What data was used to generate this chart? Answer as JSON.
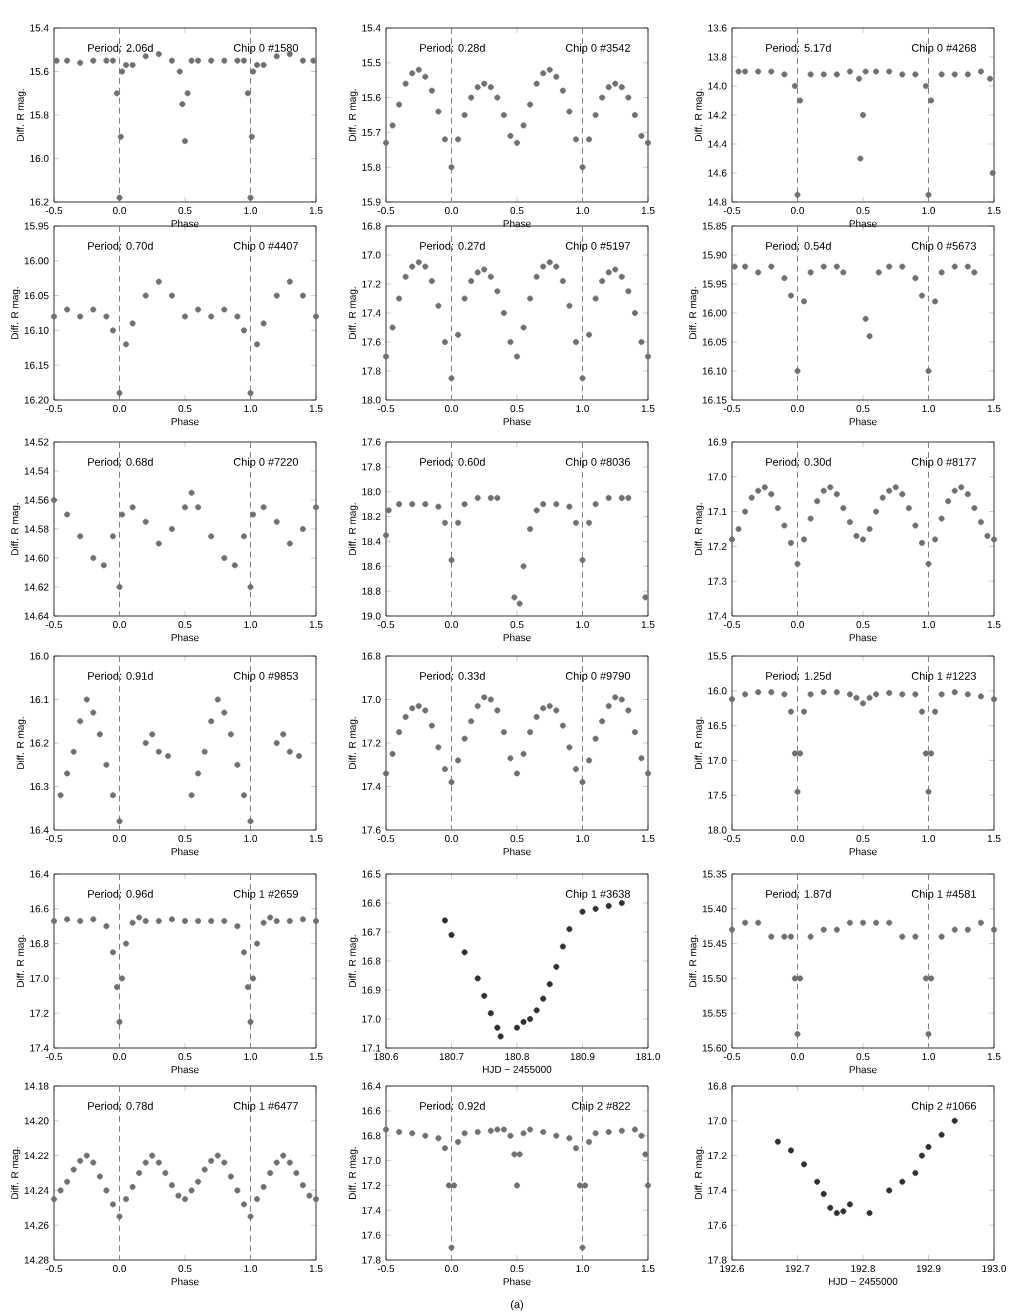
{
  "chart_data": [
    {
      "type": "scatter",
      "color": "#707070",
      "xlabel": "Phase",
      "ylabel": "Diff. R mag.",
      "annotations": [
        "Period: 2.06d",
        "Chip 0 #1580"
      ],
      "xlim": [
        -0.5,
        1.5
      ],
      "xticks": [
        -0.5,
        {
          "value": 0,
          "label": "0.0"
        },
        0.5,
        {
          "value": 1,
          "label": "1.0"
        },
        1.5
      ],
      "ylim": [
        16.2,
        15.4
      ],
      "yticks": [
        15.4,
        15.6,
        15.8,
        {
          "value": 16,
          "label": "16.0"
        },
        16.2
      ],
      "ref_lines": [
        {
          "axis": "x",
          "value": 0,
          "color": "#808080",
          "line_style": "dashed"
        },
        {
          "axis": "x",
          "value": 1,
          "color": "#808080",
          "line_style": "dashed"
        }
      ],
      "x": [
        -0.48,
        -0.4,
        -0.3,
        -0.2,
        -0.1,
        -0.05,
        -0.02,
        0,
        0.01,
        0.02,
        0.05,
        0.1,
        0.2,
        0.3,
        0.4,
        0.46,
        0.48,
        0.5,
        0.52,
        0.55,
        0.6,
        0.7,
        0.8,
        0.9,
        0.95,
        0.98,
        1,
        1.01,
        1.02,
        1.05,
        1.1,
        1.2,
        1.3,
        1.4,
        1.48
      ],
      "values": [
        15.55,
        15.55,
        15.56,
        15.55,
        15.55,
        15.55,
        15.7,
        16.18,
        15.9,
        15.6,
        15.57,
        15.57,
        15.53,
        15.52,
        15.55,
        15.6,
        15.75,
        15.92,
        15.7,
        15.55,
        15.55,
        15.55,
        15.55,
        15.55,
        15.55,
        15.7,
        16.18,
        15.9,
        15.6,
        15.57,
        15.57,
        15.53,
        15.52,
        15.55,
        15.55
      ]
    },
    {
      "type": "scatter",
      "color": "#707070",
      "xlabel": "Phase",
      "ylabel": "Diff. R mag.",
      "annotations": [
        "Period: 0.28d",
        "Chip 0 #3542"
      ],
      "xlim": [
        -0.5,
        1.5
      ],
      "xticks": [
        -0.5,
        {
          "value": 0,
          "label": "0.0"
        },
        0.5,
        {
          "value": 1,
          "label": "1.0"
        },
        1.5
      ],
      "ylim": [
        15.9,
        15.4
      ],
      "yticks": [
        15.4,
        15.5,
        15.6,
        15.7,
        15.8,
        15.9
      ],
      "ref_lines": [
        {
          "axis": "x",
          "value": 0,
          "color": "#808080",
          "line_style": "dashed"
        },
        {
          "axis": "x",
          "value": 1,
          "color": "#808080",
          "line_style": "dashed"
        }
      ],
      "x": [
        -0.5,
        -0.45,
        -0.4,
        -0.35,
        -0.3,
        -0.25,
        -0.2,
        -0.15,
        -0.1,
        -0.05,
        0,
        0.05,
        0.1,
        0.15,
        0.2,
        0.25,
        0.3,
        0.35,
        0.4,
        0.45,
        0.5,
        0.55,
        0.6,
        0.65,
        0.7,
        0.75,
        0.8,
        0.85,
        0.9,
        0.95,
        1,
        1.05,
        1.1,
        1.15,
        1.2,
        1.25,
        1.3,
        1.35,
        1.4,
        1.45,
        1.5
      ],
      "values": [
        15.73,
        15.68,
        15.62,
        15.56,
        15.53,
        15.52,
        15.54,
        15.58,
        15.64,
        15.72,
        15.8,
        15.72,
        15.65,
        15.6,
        15.57,
        15.56,
        15.57,
        15.6,
        15.65,
        15.71,
        15.73,
        15.68,
        15.62,
        15.56,
        15.53,
        15.52,
        15.54,
        15.58,
        15.64,
        15.72,
        15.8,
        15.72,
        15.65,
        15.6,
        15.57,
        15.56,
        15.57,
        15.6,
        15.65,
        15.71,
        15.73
      ]
    },
    {
      "type": "scatter",
      "color": "#707070",
      "xlabel": "Phase",
      "ylabel": "Diff. R mag.",
      "annotations": [
        "Period: 5.17d",
        "Chip 0 #4268"
      ],
      "xlim": [
        -0.5,
        1.5
      ],
      "xticks": [
        -0.5,
        {
          "value": 0,
          "label": "0.0"
        },
        0.5,
        {
          "value": 1,
          "label": "1.0"
        },
        1.5
      ],
      "ylim": [
        14.8,
        13.6
      ],
      "yticks": [
        13.6,
        13.8,
        {
          "value": 14,
          "label": "14.0"
        },
        14.2,
        14.4,
        14.6,
        14.8
      ],
      "ref_lines": [
        {
          "axis": "x",
          "value": 0,
          "color": "#808080",
          "line_style": "dashed"
        },
        {
          "axis": "x",
          "value": 1,
          "color": "#808080",
          "line_style": "dashed"
        }
      ],
      "x": [
        -0.45,
        -0.4,
        -0.3,
        -0.2,
        -0.1,
        -0.02,
        0,
        0.02,
        0.1,
        0.2,
        0.3,
        0.4,
        0.47,
        0.48,
        0.5,
        0.52,
        0.6,
        0.7,
        0.8,
        0.9,
        0.98,
        1,
        1.02,
        1.1,
        1.2,
        1.3,
        1.4,
        1.47,
        1.49
      ],
      "values": [
        13.9,
        13.9,
        13.9,
        13.9,
        13.92,
        14.0,
        14.75,
        14.1,
        13.92,
        13.92,
        13.92,
        13.9,
        13.95,
        14.5,
        14.2,
        13.9,
        13.9,
        13.9,
        13.92,
        13.92,
        14.0,
        14.75,
        14.1,
        13.92,
        13.92,
        13.92,
        13.9,
        13.95,
        14.6
      ]
    },
    {
      "type": "scatter",
      "color": "#707070",
      "xlabel": "Phase",
      "ylabel": "Diff. R mag.",
      "annotations": [
        "Period: 0.70d",
        "Chip 0 #4407"
      ],
      "xlim": [
        -0.5,
        1.5
      ],
      "xticks": [
        -0.5,
        {
          "value": 0,
          "label": "0.0"
        },
        0.5,
        {
          "value": 1,
          "label": "1.0"
        },
        1.5
      ],
      "ylim": [
        16.2,
        15.95
      ],
      "yticks": [
        15.95,
        {
          "value": 16,
          "label": "16.00"
        },
        16.05,
        {
          "value": 16.1,
          "label": "16.10"
        },
        16.15,
        {
          "value": 16.2,
          "label": "16.20"
        }
      ],
      "ref_lines": [
        {
          "axis": "x",
          "value": 0,
          "color": "#808080",
          "line_style": "dashed"
        },
        {
          "axis": "x",
          "value": 1,
          "color": "#808080",
          "line_style": "dashed"
        }
      ],
      "x": [
        -0.5,
        -0.4,
        -0.3,
        -0.2,
        -0.1,
        -0.05,
        0,
        0.05,
        0.1,
        0.2,
        0.3,
        0.4,
        0.5,
        0.6,
        0.7,
        0.8,
        0.9,
        0.95,
        1,
        1.05,
        1.1,
        1.2,
        1.3,
        1.4,
        1.5
      ],
      "values": [
        16.08,
        16.07,
        16.08,
        16.07,
        16.08,
        16.1,
        16.19,
        16.12,
        16.09,
        16.05,
        16.03,
        16.05,
        16.08,
        16.07,
        16.08,
        16.07,
        16.08,
        16.1,
        16.19,
        16.12,
        16.09,
        16.05,
        16.03,
        16.05,
        16.08
      ]
    },
    {
      "type": "scatter",
      "color": "#707070",
      "xlabel": "Phase",
      "ylabel": "Diff. R mag.",
      "annotations": [
        "Period: 0.27d",
        "Chip 0 #5197"
      ],
      "xlim": [
        -0.5,
        1.5
      ],
      "xticks": [
        -0.5,
        {
          "value": 0,
          "label": "0.0"
        },
        0.5,
        {
          "value": 1,
          "label": "1.0"
        },
        1.5
      ],
      "ylim": [
        18.0,
        16.8
      ],
      "yticks": [
        16.8,
        {
          "value": 17,
          "label": "17.0"
        },
        17.2,
        17.4,
        17.6,
        17.8,
        {
          "value": 18,
          "label": "18.0"
        }
      ],
      "ref_lines": [
        {
          "axis": "x",
          "value": 0,
          "color": "#808080",
          "line_style": "dashed"
        },
        {
          "axis": "x",
          "value": 1,
          "color": "#808080",
          "line_style": "dashed"
        }
      ],
      "x": [
        -0.5,
        -0.45,
        -0.4,
        -0.35,
        -0.3,
        -0.25,
        -0.2,
        -0.15,
        -0.1,
        -0.05,
        0,
        0.05,
        0.1,
        0.15,
        0.2,
        0.25,
        0.3,
        0.35,
        0.4,
        0.45,
        0.5,
        0.55,
        0.6,
        0.65,
        0.7,
        0.75,
        0.8,
        0.85,
        0.9,
        0.95,
        1,
        1.05,
        1.1,
        1.15,
        1.2,
        1.25,
        1.3,
        1.35,
        1.4,
        1.45,
        1.5
      ],
      "values": [
        17.7,
        17.5,
        17.3,
        17.15,
        17.08,
        17.05,
        17.08,
        17.18,
        17.35,
        17.6,
        17.85,
        17.55,
        17.3,
        17.18,
        17.12,
        17.1,
        17.15,
        17.25,
        17.4,
        17.6,
        17.7,
        17.5,
        17.3,
        17.15,
        17.08,
        17.05,
        17.08,
        17.18,
        17.35,
        17.6,
        17.85,
        17.55,
        17.3,
        17.18,
        17.12,
        17.1,
        17.15,
        17.25,
        17.4,
        17.6,
        17.7
      ]
    },
    {
      "type": "scatter",
      "color": "#707070",
      "xlabel": "Phase",
      "ylabel": "Diff. R mag.",
      "annotations": [
        "Period: 0.54d",
        "Chip 0 #5673"
      ],
      "xlim": [
        -0.5,
        1.5
      ],
      "xticks": [
        -0.5,
        {
          "value": 0,
          "label": "0.0"
        },
        0.5,
        {
          "value": 1,
          "label": "1.0"
        },
        1.5
      ],
      "ylim": [
        16.15,
        15.85
      ],
      "yticks": [
        15.85,
        {
          "value": 15.9,
          "label": "15.90"
        },
        15.95,
        {
          "value": 16,
          "label": "16.00"
        },
        16.05,
        {
          "value": 16.1,
          "label": "16.10"
        },
        16.15
      ],
      "ref_lines": [
        {
          "axis": "x",
          "value": 0,
          "color": "#808080",
          "line_style": "dashed"
        },
        {
          "axis": "x",
          "value": 1,
          "color": "#808080",
          "line_style": "dashed"
        }
      ],
      "x": [
        -0.48,
        -0.4,
        -0.3,
        -0.2,
        -0.1,
        -0.05,
        0,
        0.05,
        0.1,
        0.2,
        0.3,
        0.35,
        0.52,
        0.55,
        0.62,
        0.7,
        0.8,
        0.9,
        0.95,
        1,
        1.05,
        1.1,
        1.2,
        1.3,
        1.35
      ],
      "values": [
        15.92,
        15.92,
        15.93,
        15.92,
        15.94,
        15.97,
        16.1,
        15.98,
        15.93,
        15.92,
        15.92,
        15.93,
        16.01,
        16.04,
        15.93,
        15.92,
        15.92,
        15.94,
        15.97,
        16.1,
        15.98,
        15.93,
        15.92,
        15.92,
        15.93
      ]
    },
    {
      "type": "scatter",
      "color": "#707070",
      "xlabel": "Phase",
      "ylabel": "Diff. R mag.",
      "annotations": [
        "Period: 0.68d",
        "Chip 0 #7220"
      ],
      "xlim": [
        -0.5,
        1.5
      ],
      "xticks": [
        -0.5,
        {
          "value": 0,
          "label": "0.0"
        },
        0.5,
        {
          "value": 1,
          "label": "1.0"
        },
        1.5
      ],
      "ylim": [
        14.64,
        14.52
      ],
      "yticks": [
        14.52,
        14.54,
        14.56,
        14.58,
        {
          "value": 14.6,
          "label": "14.60"
        },
        14.62,
        14.64
      ],
      "ref_lines": [
        {
          "axis": "x",
          "value": 0,
          "color": "#808080",
          "line_style": "dashed"
        },
        {
          "axis": "x",
          "value": 1,
          "color": "#808080",
          "line_style": "dashed"
        }
      ],
      "x": [
        -0.5,
        -0.4,
        -0.3,
        -0.2,
        -0.12,
        -0.05,
        0,
        0.02,
        0.1,
        0.2,
        0.3,
        0.4,
        0.5,
        0.55,
        0.6,
        0.7,
        0.8,
        0.88,
        0.95,
        1,
        1.02,
        1.1,
        1.2,
        1.3,
        1.4,
        1.5
      ],
      "values": [
        14.56,
        14.57,
        14.585,
        14.6,
        14.605,
        14.585,
        14.62,
        14.57,
        14.565,
        14.575,
        14.59,
        14.58,
        14.565,
        14.555,
        14.565,
        14.585,
        14.6,
        14.605,
        14.585,
        14.62,
        14.57,
        14.565,
        14.575,
        14.59,
        14.58,
        14.565
      ]
    },
    {
      "type": "scatter",
      "color": "#707070",
      "xlabel": "Phase",
      "ylabel": "Diff. R mag.",
      "annotations": [
        "Period: 0.60d",
        "Chip 0 #8036"
      ],
      "xlim": [
        -0.5,
        1.5
      ],
      "xticks": [
        -0.5,
        {
          "value": 0,
          "label": "0.0"
        },
        0.5,
        {
          "value": 1,
          "label": "1.0"
        },
        1.5
      ],
      "ylim": [
        19.0,
        17.6
      ],
      "yticks": [
        17.6,
        17.8,
        {
          "value": 18,
          "label": "18.0"
        },
        18.2,
        18.4,
        18.6,
        18.8,
        {
          "value": 19,
          "label": "19.0"
        }
      ],
      "ref_lines": [
        {
          "axis": "x",
          "value": 0,
          "color": "#808080",
          "line_style": "dashed"
        },
        {
          "axis": "x",
          "value": 1,
          "color": "#808080",
          "line_style": "dashed"
        }
      ],
      "x": [
        -0.5,
        -0.48,
        -0.4,
        -0.3,
        -0.2,
        -0.1,
        -0.05,
        0,
        0.05,
        0.1,
        0.2,
        0.3,
        0.35,
        0.48,
        0.52,
        0.55,
        0.6,
        0.65,
        0.7,
        0.8,
        0.9,
        0.95,
        1,
        1.05,
        1.1,
        1.2,
        1.3,
        1.35,
        1.48
      ],
      "values": [
        18.35,
        18.15,
        18.1,
        18.1,
        18.1,
        18.12,
        18.25,
        18.55,
        18.25,
        18.1,
        18.05,
        18.05,
        18.05,
        18.85,
        18.9,
        18.6,
        18.3,
        18.15,
        18.1,
        18.1,
        18.12,
        18.25,
        18.55,
        18.25,
        18.1,
        18.05,
        18.05,
        18.05,
        18.85
      ]
    },
    {
      "type": "scatter",
      "color": "#707070",
      "xlabel": "Phase",
      "ylabel": "Diff. R mag.",
      "annotations": [
        "Period: 0.30d",
        "Chip 0 #8177"
      ],
      "xlim": [
        -0.5,
        1.5
      ],
      "xticks": [
        -0.5,
        {
          "value": 0,
          "label": "0.0"
        },
        0.5,
        {
          "value": 1,
          "label": "1.0"
        },
        1.5
      ],
      "ylim": [
        17.4,
        16.9
      ],
      "yticks": [
        16.9,
        {
          "value": 17,
          "label": "17.0"
        },
        17.1,
        17.2,
        17.3,
        17.4
      ],
      "ref_lines": [
        {
          "axis": "x",
          "value": 0,
          "color": "#808080",
          "line_style": "dashed"
        },
        {
          "axis": "x",
          "value": 1,
          "color": "#808080",
          "line_style": "dashed"
        }
      ],
      "x": [
        -0.5,
        -0.45,
        -0.4,
        -0.35,
        -0.3,
        -0.25,
        -0.2,
        -0.15,
        -0.1,
        -0.05,
        0,
        0.05,
        0.1,
        0.15,
        0.2,
        0.25,
        0.3,
        0.35,
        0.4,
        0.45,
        0.5,
        0.55,
        0.6,
        0.65,
        0.7,
        0.75,
        0.8,
        0.85,
        0.9,
        0.95,
        1,
        1.05,
        1.1,
        1.15,
        1.2,
        1.25,
        1.3,
        1.35,
        1.4,
        1.45,
        1.5
      ],
      "values": [
        17.18,
        17.15,
        17.1,
        17.06,
        17.04,
        17.03,
        17.05,
        17.09,
        17.14,
        17.19,
        17.25,
        17.18,
        17.12,
        17.07,
        17.04,
        17.03,
        17.05,
        17.09,
        17.13,
        17.17,
        17.18,
        17.15,
        17.1,
        17.06,
        17.04,
        17.03,
        17.05,
        17.09,
        17.14,
        17.19,
        17.25,
        17.18,
        17.12,
        17.07,
        17.04,
        17.03,
        17.05,
        17.09,
        17.13,
        17.17,
        17.18
      ]
    },
    {
      "type": "scatter",
      "color": "#707070",
      "xlabel": "Phase",
      "ylabel": "Diff. R mag.",
      "annotations": [
        "Period: 0.91d",
        "Chip 0 #9853"
      ],
      "xlim": [
        -0.5,
        1.5
      ],
      "xticks": [
        -0.5,
        {
          "value": 0,
          "label": "0.0"
        },
        0.5,
        {
          "value": 1,
          "label": "1.0"
        },
        1.5
      ],
      "ylim": [
        16.4,
        16.0
      ],
      "yticks": [
        {
          "value": 16,
          "label": "16.0"
        },
        16.1,
        16.2,
        16.3,
        16.4
      ],
      "ref_lines": [
        {
          "axis": "x",
          "value": 0,
          "color": "#808080",
          "line_style": "dashed"
        },
        {
          "axis": "x",
          "value": 1,
          "color": "#808080",
          "line_style": "dashed"
        }
      ],
      "x": [
        -0.45,
        -0.4,
        -0.35,
        -0.3,
        -0.25,
        -0.2,
        -0.15,
        -0.1,
        -0.05,
        0,
        0.2,
        0.25,
        0.3,
        0.37,
        0.55,
        0.6,
        0.65,
        0.7,
        0.75,
        0.8,
        0.85,
        0.9,
        0.95,
        1,
        1.2,
        1.25,
        1.3,
        1.37
      ],
      "values": [
        16.32,
        16.27,
        16.22,
        16.15,
        16.1,
        16.13,
        16.18,
        16.25,
        16.32,
        16.38,
        16.2,
        16.18,
        16.22,
        16.23,
        16.32,
        16.27,
        16.22,
        16.15,
        16.1,
        16.13,
        16.18,
        16.25,
        16.32,
        16.38,
        16.2,
        16.18,
        16.22,
        16.23
      ]
    },
    {
      "type": "scatter",
      "color": "#707070",
      "xlabel": "Phase",
      "ylabel": "Diff. R mag.",
      "annotations": [
        "Period: 0.33d",
        "Chip 0 #9790"
      ],
      "xlim": [
        -0.5,
        1.5
      ],
      "xticks": [
        -0.5,
        {
          "value": 0,
          "label": "0.0"
        },
        0.5,
        {
          "value": 1,
          "label": "1.0"
        },
        1.5
      ],
      "ylim": [
        17.6,
        16.8
      ],
      "yticks": [
        16.8,
        {
          "value": 17,
          "label": "17.0"
        },
        17.2,
        17.4,
        17.6
      ],
      "ref_lines": [
        {
          "axis": "x",
          "value": 0,
          "color": "#808080",
          "line_style": "dashed"
        },
        {
          "axis": "x",
          "value": 1,
          "color": "#808080",
          "line_style": "dashed"
        }
      ],
      "x": [
        -0.5,
        -0.45,
        -0.4,
        -0.35,
        -0.3,
        -0.25,
        -0.2,
        -0.15,
        -0.1,
        -0.05,
        0,
        0.05,
        0.1,
        0.15,
        0.2,
        0.25,
        0.3,
        0.35,
        0.4,
        0.45,
        0.5,
        0.55,
        0.6,
        0.65,
        0.7,
        0.75,
        0.8,
        0.85,
        0.9,
        0.95,
        1,
        1.05,
        1.1,
        1.15,
        1.2,
        1.25,
        1.3,
        1.35,
        1.4,
        1.45,
        1.5
      ],
      "values": [
        17.34,
        17.25,
        17.15,
        17.08,
        17.04,
        17.03,
        17.05,
        17.12,
        17.22,
        17.32,
        17.38,
        17.28,
        17.18,
        17.1,
        17.03,
        16.99,
        17.0,
        17.05,
        17.15,
        17.27,
        17.34,
        17.25,
        17.15,
        17.08,
        17.04,
        17.03,
        17.05,
        17.12,
        17.22,
        17.32,
        17.38,
        17.28,
        17.18,
        17.1,
        17.03,
        16.99,
        17.0,
        17.05,
        17.15,
        17.27,
        17.34
      ]
    },
    {
      "type": "scatter",
      "color": "#707070",
      "xlabel": "Phase",
      "ylabel": "Diff. R mag.",
      "annotations": [
        "Period: 1.25d",
        "Chip 1 #1223"
      ],
      "xlim": [
        -0.5,
        1.5
      ],
      "xticks": [
        -0.5,
        {
          "value": 0,
          "label": "0.0"
        },
        0.5,
        {
          "value": 1,
          "label": "1.0"
        },
        1.5
      ],
      "ylim": [
        18.0,
        15.5
      ],
      "yticks": [
        15.5,
        {
          "value": 16,
          "label": "16.0"
        },
        16.5,
        {
          "value": 17,
          "label": "17.0"
        },
        17.5,
        {
          "value": 18,
          "label": "18.0"
        }
      ],
      "ref_lines": [
        {
          "axis": "x",
          "value": 0,
          "color": "#808080",
          "line_style": "dashed"
        },
        {
          "axis": "x",
          "value": 1,
          "color": "#808080",
          "line_style": "dashed"
        }
      ],
      "x": [
        -0.5,
        -0.4,
        -0.3,
        -0.2,
        -0.1,
        -0.05,
        -0.02,
        0,
        0.02,
        0.05,
        0.1,
        0.2,
        0.3,
        0.4,
        0.45,
        0.5,
        0.55,
        0.6,
        0.7,
        0.8,
        0.9,
        0.95,
        0.98,
        1,
        1.02,
        1.05,
        1.1,
        1.2,
        1.3,
        1.4,
        1.5
      ],
      "values": [
        16.12,
        16.05,
        16.02,
        16.02,
        16.05,
        16.3,
        16.9,
        17.45,
        16.9,
        16.3,
        16.05,
        16.02,
        16.02,
        16.05,
        16.1,
        16.18,
        16.1,
        16.05,
        16.03,
        16.05,
        16.05,
        16.3,
        16.9,
        17.45,
        16.9,
        16.3,
        16.05,
        16.02,
        16.05,
        16.08,
        16.12
      ]
    },
    {
      "type": "scatter",
      "color": "#707070",
      "xlabel": "Phase",
      "ylabel": "Diff. R mag.",
      "annotations": [
        "Period: 0.96d",
        "Chip 1 #2659"
      ],
      "xlim": [
        -0.5,
        1.5
      ],
      "xticks": [
        -0.5,
        {
          "value": 0,
          "label": "0.0"
        },
        0.5,
        {
          "value": 1,
          "label": "1.0"
        },
        1.5
      ],
      "ylim": [
        17.4,
        16.4
      ],
      "yticks": [
        16.4,
        16.6,
        16.8,
        {
          "value": 17,
          "label": "17.0"
        },
        17.2,
        17.4
      ],
      "ref_lines": [
        {
          "axis": "x",
          "value": 0,
          "color": "#808080",
          "line_style": "dashed"
        },
        {
          "axis": "x",
          "value": 1,
          "color": "#808080",
          "line_style": "dashed"
        }
      ],
      "x": [
        -0.5,
        -0.4,
        -0.3,
        -0.2,
        -0.1,
        -0.05,
        -0.02,
        0,
        0.02,
        0.05,
        0.1,
        0.15,
        0.2,
        0.3,
        0.4,
        0.5,
        0.6,
        0.7,
        0.8,
        0.9,
        0.95,
        0.98,
        1,
        1.02,
        1.05,
        1.1,
        1.15,
        1.2,
        1.3,
        1.4,
        1.5
      ],
      "values": [
        16.67,
        16.66,
        16.67,
        16.66,
        16.7,
        16.85,
        17.05,
        17.25,
        17.0,
        16.8,
        16.68,
        16.65,
        16.67,
        16.67,
        16.66,
        16.67,
        16.67,
        16.67,
        16.67,
        16.7,
        16.85,
        17.05,
        17.25,
        17.0,
        16.8,
        16.68,
        16.65,
        16.67,
        16.67,
        16.66,
        16.67
      ]
    },
    {
      "type": "scatter",
      "color": "#303030",
      "xlabel": "HJD − 2455000",
      "ylabel": "Diff. R mag.",
      "annotations": [
        "Chip 1 #3638"
      ],
      "xlim": [
        180.6,
        181.0
      ],
      "xticks": [
        180.6,
        180.7,
        180.8,
        180.9,
        {
          "value": 181,
          "label": "181.0"
        }
      ],
      "ylim": [
        17.1,
        16.5
      ],
      "yticks": [
        16.5,
        16.6,
        16.7,
        16.8,
        16.9,
        {
          "value": 17,
          "label": "17.0"
        },
        17.1
      ],
      "x": [
        180.69,
        180.7,
        180.72,
        180.74,
        180.75,
        180.76,
        180.77,
        180.775,
        180.8,
        180.81,
        180.82,
        180.83,
        180.84,
        180.85,
        180.86,
        180.87,
        180.88,
        180.9,
        180.92,
        180.94,
        180.96
      ],
      "values": [
        16.66,
        16.71,
        16.77,
        16.86,
        16.92,
        16.98,
        17.03,
        17.06,
        17.03,
        17.01,
        17.0,
        16.97,
        16.93,
        16.88,
        16.82,
        16.75,
        16.69,
        16.63,
        16.62,
        16.61,
        16.6
      ]
    },
    {
      "type": "scatter",
      "color": "#707070",
      "xlabel": "Phase",
      "ylabel": "Diff. R mag.",
      "annotations": [
        "Period: 1.87d",
        "Chip 1 #4581"
      ],
      "xlim": [
        -0.5,
        1.5
      ],
      "xticks": [
        -0.5,
        {
          "value": 0,
          "label": "0.0"
        },
        0.5,
        {
          "value": 1,
          "label": "1.0"
        },
        1.5
      ],
      "ylim": [
        15.6,
        15.35
      ],
      "yticks": [
        15.35,
        {
          "value": 15.4,
          "label": "15.40"
        },
        15.45,
        {
          "value": 15.5,
          "label": "15.50"
        },
        15.55,
        {
          "value": 15.6,
          "label": "15.60"
        }
      ],
      "ref_lines": [
        {
          "axis": "x",
          "value": 0,
          "color": "#808080",
          "line_style": "dashed"
        },
        {
          "axis": "x",
          "value": 1,
          "color": "#808080",
          "line_style": "dashed"
        }
      ],
      "x": [
        -0.5,
        -0.4,
        -0.3,
        -0.2,
        -0.1,
        -0.05,
        -0.02,
        0,
        0.02,
        0.1,
        0.2,
        0.3,
        0.4,
        0.5,
        0.6,
        0.7,
        0.8,
        0.9,
        0.98,
        1,
        1.02,
        1.1,
        1.2,
        1.3,
        1.4,
        1.5
      ],
      "values": [
        15.43,
        15.42,
        15.42,
        15.44,
        15.44,
        15.44,
        15.5,
        15.58,
        15.5,
        15.44,
        15.43,
        15.43,
        15.42,
        15.42,
        15.42,
        15.42,
        15.44,
        15.44,
        15.5,
        15.58,
        15.5,
        15.44,
        15.43,
        15.43,
        15.42,
        15.43
      ]
    },
    {
      "type": "scatter",
      "color": "#707070",
      "xlabel": "Phase",
      "ylabel": "Diff. R mag.",
      "annotations": [
        "Period: 0.78d",
        "Chip 1 #6477"
      ],
      "xlim": [
        -0.5,
        1.5
      ],
      "xticks": [
        -0.5,
        {
          "value": 0,
          "label": "0.0"
        },
        0.5,
        {
          "value": 1,
          "label": "1.0"
        },
        1.5
      ],
      "ylim": [
        14.28,
        14.18
      ],
      "yticks": [
        14.18,
        {
          "value": 14.2,
          "label": "14.20"
        },
        14.22,
        14.24,
        14.26,
        14.28
      ],
      "ref_lines": [
        {
          "axis": "x",
          "value": 0,
          "color": "#808080",
          "line_style": "dashed"
        },
        {
          "axis": "x",
          "value": 1,
          "color": "#808080",
          "line_style": "dashed"
        }
      ],
      "x": [
        -0.5,
        -0.45,
        -0.4,
        -0.35,
        -0.3,
        -0.25,
        -0.2,
        -0.15,
        -0.1,
        -0.05,
        0,
        0.05,
        0.1,
        0.15,
        0.2,
        0.25,
        0.3,
        0.35,
        0.4,
        0.45,
        0.5,
        0.55,
        0.6,
        0.65,
        0.7,
        0.75,
        0.8,
        0.85,
        0.9,
        0.95,
        1,
        1.05,
        1.1,
        1.15,
        1.2,
        1.25,
        1.3,
        1.35,
        1.4,
        1.45,
        1.5
      ],
      "values": [
        14.245,
        14.24,
        14.235,
        14.228,
        14.223,
        14.22,
        14.224,
        14.232,
        14.24,
        14.248,
        14.255,
        14.245,
        14.238,
        14.23,
        14.224,
        14.22,
        14.224,
        14.23,
        14.237,
        14.243,
        14.245,
        14.24,
        14.235,
        14.228,
        14.223,
        14.22,
        14.224,
        14.232,
        14.24,
        14.248,
        14.255,
        14.245,
        14.238,
        14.23,
        14.224,
        14.22,
        14.224,
        14.23,
        14.237,
        14.243,
        14.245
      ]
    },
    {
      "type": "scatter",
      "color": "#707070",
      "xlabel": "Phase",
      "ylabel": "Diff. R mag.",
      "annotations": [
        "Period: 0.92d",
        "Chip 2 #822",
        "(a)"
      ],
      "xlim": [
        -0.5,
        1.5
      ],
      "xticks": [
        -0.5,
        {
          "value": 0,
          "label": "0.0"
        },
        0.5,
        {
          "value": 1,
          "label": "1.0"
        },
        1.5
      ],
      "ylim": [
        17.8,
        16.4
      ],
      "yticks": [
        16.4,
        16.6,
        16.8,
        {
          "value": 17,
          "label": "17.0"
        },
        17.2,
        17.4,
        17.6,
        17.8
      ],
      "ref_lines": [
        {
          "axis": "x",
          "value": 0,
          "color": "#808080",
          "line_style": "dashed"
        },
        {
          "axis": "x",
          "value": 1,
          "color": "#808080",
          "line_style": "dashed"
        }
      ],
      "x": [
        -0.5,
        -0.4,
        -0.3,
        -0.2,
        -0.1,
        -0.05,
        -0.02,
        0,
        0.02,
        0.05,
        0.1,
        0.2,
        0.3,
        0.35,
        0.4,
        0.45,
        0.48,
        0.5,
        0.52,
        0.55,
        0.6,
        0.7,
        0.8,
        0.9,
        0.95,
        0.98,
        1,
        1.02,
        1.05,
        1.1,
        1.2,
        1.3,
        1.4,
        1.45,
        1.48,
        1.5
      ],
      "values": [
        16.75,
        16.77,
        16.78,
        16.8,
        16.82,
        16.9,
        17.2,
        17.7,
        17.2,
        16.85,
        16.78,
        16.77,
        16.76,
        16.75,
        16.75,
        16.8,
        16.95,
        17.2,
        16.95,
        16.78,
        16.75,
        16.77,
        16.8,
        16.82,
        16.9,
        17.2,
        17.7,
        17.2,
        16.85,
        16.78,
        16.77,
        16.76,
        16.75,
        16.8,
        16.95,
        17.2
      ]
    },
    {
      "type": "scatter",
      "color": "#303030",
      "xlabel": "HJD − 2455000",
      "ylabel": "Diff. R mag.",
      "annotations": [
        "Chip 2 #1066"
      ],
      "xlim": [
        192.6,
        193.0
      ],
      "xticks": [
        192.6,
        192.7,
        192.8,
        192.9,
        {
          "value": 193,
          "label": "193.0"
        }
      ],
      "ylim": [
        17.8,
        16.8
      ],
      "yticks": [
        16.8,
        {
          "value": 17,
          "label": "17.0"
        },
        17.2,
        17.4,
        17.6,
        17.8
      ],
      "x": [
        192.67,
        192.69,
        192.71,
        192.73,
        192.74,
        192.75,
        192.76,
        192.77,
        192.78,
        192.81,
        192.84,
        192.86,
        192.88,
        192.89,
        192.9,
        192.92,
        192.94
      ],
      "values": [
        17.12,
        17.17,
        17.25,
        17.35,
        17.42,
        17.5,
        17.53,
        17.52,
        17.48,
        17.53,
        17.4,
        17.35,
        17.3,
        17.2,
        17.15,
        17.08,
        17.0
      ]
    }
  ]
}
